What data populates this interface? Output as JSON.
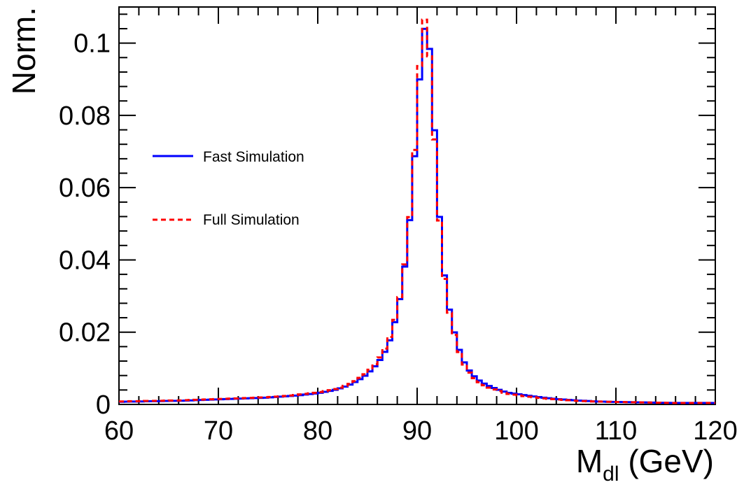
{
  "chart_data": {
    "type": "line",
    "title": "",
    "xlabel": "M",
    "xlabel_sub": "dl",
    "xlabel_unit": "(GeV)",
    "ylabel": "Norm.",
    "xlim": [
      60,
      120
    ],
    "ylim": [
      0,
      0.11
    ],
    "x_ticks": [
      "60",
      "70",
      "80",
      "90",
      "100",
      "110",
      "120"
    ],
    "y_ticks": [
      "0",
      "0.02",
      "0.04",
      "0.06",
      "0.08",
      "0.1"
    ],
    "legend_placement": "left",
    "bin_width": 0.5,
    "series": [
      {
        "name": "Fast Simulation",
        "color": "#0000ff",
        "style": "solid",
        "x": [
          60.0,
          61.0,
          62.0,
          63.0,
          64.0,
          65.0,
          66.0,
          67.0,
          68.0,
          69.0,
          70.0,
          71.0,
          72.0,
          73.0,
          74.0,
          75.0,
          76.0,
          77.0,
          78.0,
          79.0,
          80.0,
          81.0,
          82.0,
          82.5,
          83.0,
          83.5,
          84.0,
          84.5,
          85.0,
          85.5,
          86.0,
          86.5,
          87.0,
          87.5,
          88.0,
          88.5,
          89.0,
          89.5,
          90.0,
          90.5,
          91.0,
          91.5,
          92.0,
          92.5,
          93.0,
          93.5,
          94.0,
          94.5,
          95.0,
          95.5,
          96.0,
          96.5,
          97.0,
          97.5,
          98.0,
          98.5,
          99.0,
          100.0,
          101.0,
          102.0,
          103.0,
          104.0,
          105.0,
          106.0,
          107.0,
          108.0,
          110.0,
          112.0,
          114.0,
          116.0,
          118.0,
          120.0
        ],
        "values": [
          0.0007,
          0.0008,
          0.0008,
          0.0009,
          0.0009,
          0.001,
          0.001,
          0.0011,
          0.0012,
          0.0013,
          0.0014,
          0.0015,
          0.0016,
          0.0017,
          0.0018,
          0.0019,
          0.0021,
          0.0023,
          0.0025,
          0.0028,
          0.0031,
          0.0036,
          0.0042,
          0.0047,
          0.0052,
          0.0058,
          0.0066,
          0.0074,
          0.0085,
          0.0098,
          0.0113,
          0.0133,
          0.0158,
          0.0197,
          0.0258,
          0.0325,
          0.0438,
          0.0582,
          0.0792,
          0.1007,
          0.1072,
          0.0896,
          0.0622,
          0.0416,
          0.0298,
          0.0227,
          0.0172,
          0.013,
          0.0103,
          0.0085,
          0.0071,
          0.0061,
          0.0054,
          0.0048,
          0.0043,
          0.0038,
          0.0033,
          0.0029,
          0.0025,
          0.0021,
          0.0018,
          0.0015,
          0.0013,
          0.0011,
          0.001,
          0.0008,
          0.0007,
          0.0006,
          0.0005,
          0.0004,
          0.0004,
          0.0004
        ]
      },
      {
        "name": "Full Simulation",
        "color": "#ff0000",
        "style": "dashed",
        "x": [
          60.0,
          61.0,
          62.0,
          63.0,
          64.0,
          65.0,
          66.0,
          67.0,
          68.0,
          69.0,
          70.0,
          71.0,
          72.0,
          73.0,
          74.0,
          75.0,
          76.0,
          77.0,
          78.0,
          79.0,
          80.0,
          81.0,
          82.0,
          82.5,
          83.0,
          83.5,
          84.0,
          84.5,
          85.0,
          85.5,
          86.0,
          86.5,
          87.0,
          87.5,
          88.0,
          88.5,
          89.0,
          89.5,
          90.0,
          90.5,
          91.0,
          91.5,
          92.0,
          92.5,
          93.0,
          93.5,
          94.0,
          94.5,
          95.0,
          95.5,
          96.0,
          96.5,
          97.0,
          97.5,
          98.0,
          98.5,
          99.0,
          100.0,
          101.0,
          102.0,
          103.0,
          104.0,
          105.0,
          106.0,
          107.0,
          108.0,
          110.0,
          112.0,
          114.0,
          116.0,
          118.0,
          120.0
        ],
        "values": [
          0.0008,
          0.0009,
          0.0009,
          0.001,
          0.001,
          0.0011,
          0.0011,
          0.0012,
          0.0013,
          0.0014,
          0.0015,
          0.0016,
          0.0017,
          0.0018,
          0.0019,
          0.002,
          0.0022,
          0.0024,
          0.0027,
          0.003,
          0.0033,
          0.0038,
          0.0044,
          0.0049,
          0.0054,
          0.006,
          0.0069,
          0.0078,
          0.0089,
          0.0103,
          0.0119,
          0.0141,
          0.0168,
          0.0206,
          0.0262,
          0.0332,
          0.0443,
          0.0594,
          0.0815,
          0.1058,
          0.1072,
          0.0855,
          0.0612,
          0.0406,
          0.0289,
          0.0219,
          0.0166,
          0.0124,
          0.0097,
          0.0079,
          0.0066,
          0.0057,
          0.0049,
          0.0044,
          0.0039,
          0.0035,
          0.003,
          0.0026,
          0.0022,
          0.0019,
          0.0016,
          0.0014,
          0.0012,
          0.001,
          0.0009,
          0.0008,
          0.0007,
          0.0006,
          0.0005,
          0.0004,
          0.0004,
          0.0004
        ]
      }
    ]
  }
}
